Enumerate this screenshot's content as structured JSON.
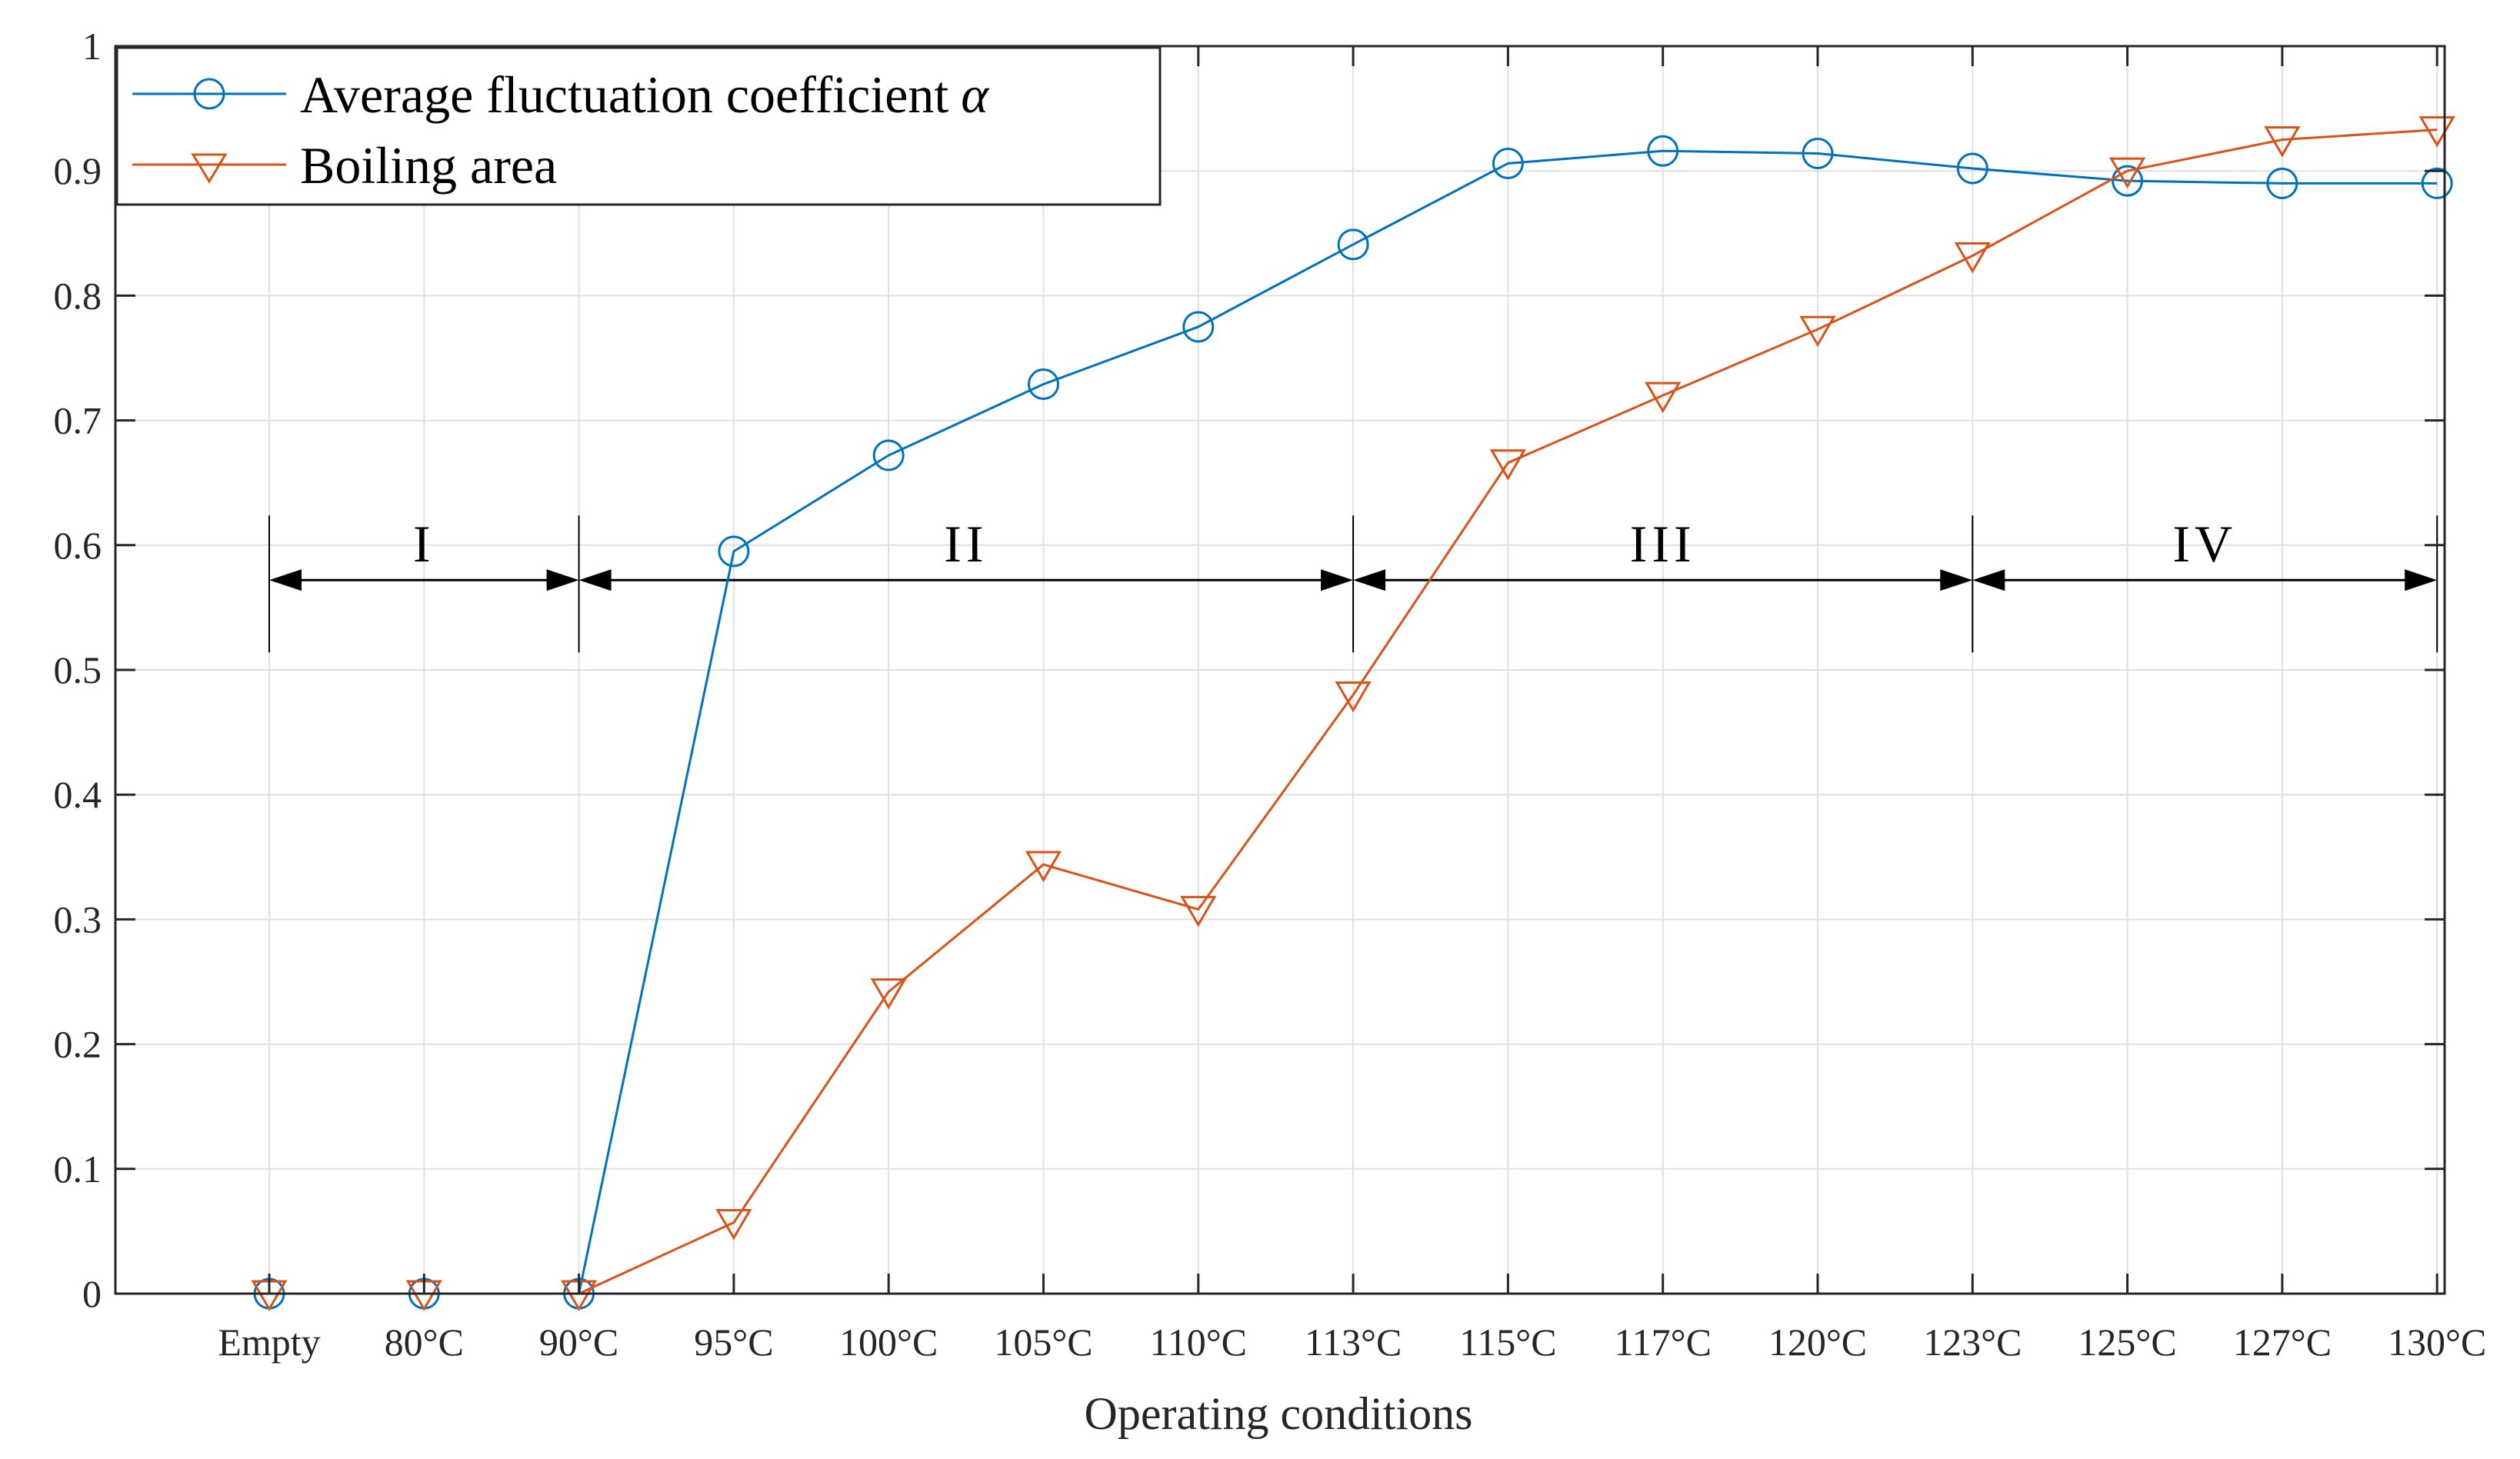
{
  "chart_data": {
    "type": "line",
    "title": "",
    "xlabel": "Operating conditions",
    "ylabel": "",
    "categories": [
      "Empty",
      "80°C",
      "90°C",
      "95°C",
      "100°C",
      "105°C",
      "110°C",
      "113°C",
      "115°C",
      "117°C",
      "120°C",
      "123°C",
      "125°C",
      "127°C",
      "130°C"
    ],
    "ylim": [
      0,
      1
    ],
    "yticks": [
      0,
      0.1,
      0.2,
      0.3,
      0.4,
      0.5,
      0.6,
      0.7,
      0.8,
      0.9,
      1
    ],
    "ytick_labels": [
      "0",
      "0.1",
      "0.2",
      "0.3",
      "0.4",
      "0.5",
      "0.6",
      "0.7",
      "0.8",
      "0.9",
      "1"
    ],
    "grid": true,
    "legend_position": "top-left",
    "series": [
      {
        "name": "Average fluctuation coefficient",
        "symbol": "α",
        "marker": "circle",
        "color": "#0072BD",
        "values": [
          0,
          0,
          0,
          0.595,
          0.672,
          0.729,
          0.775,
          0.841,
          0.906,
          0.916,
          0.914,
          0.902,
          0.892,
          0.89,
          0.89
        ]
      },
      {
        "name": "Boiling area",
        "marker": "triangle-down",
        "color": "#D95319",
        "values": [
          0,
          0,
          0,
          0.057,
          0.242,
          0.344,
          0.308,
          0.48,
          0.666,
          0.72,
          0.773,
          0.832,
          0.9,
          0.925,
          0.933
        ]
      }
    ],
    "regions": [
      {
        "label": "I",
        "from": 0,
        "to": 2
      },
      {
        "label": "II",
        "from": 2,
        "to": 7
      },
      {
        "label": "III",
        "from": 7,
        "to": 11
      },
      {
        "label": "IV",
        "from": 11,
        "to": 14
      }
    ],
    "region_arrow_y": 0.572
  }
}
